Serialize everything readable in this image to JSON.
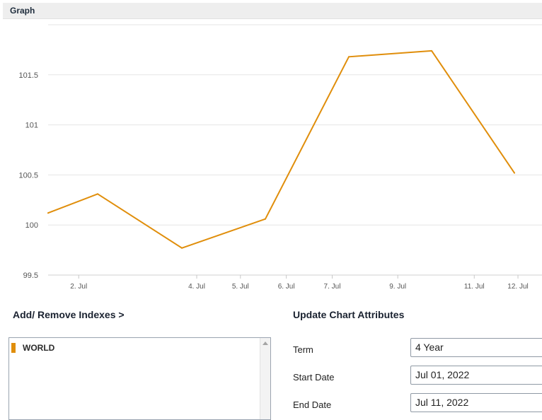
{
  "panel": {
    "title": "Graph"
  },
  "chart_data": {
    "type": "line",
    "title": "",
    "xlabel": "",
    "ylabel": "",
    "x_ticks": [
      "2. Jul",
      "4. Jul",
      "5. Jul",
      "6. Jul",
      "7. Jul",
      "9. Jul",
      "11. Jul",
      "12. Jul"
    ],
    "y_ticks": [
      "99.5",
      "100",
      "100.5",
      "101",
      "101.5"
    ],
    "ylim": [
      99.5,
      102.0
    ],
    "grid": true,
    "series": [
      {
        "name": "WORLD",
        "color": "#e08e0b",
        "points": [
          {
            "x": "Jul 1, 2022",
            "y": 100.12
          },
          {
            "x": "Jul 4, 2022",
            "y": 100.31
          },
          {
            "x": "Jul 5, 2022",
            "y": 99.77
          },
          {
            "x": "Jul 6, 2022",
            "y": 100.06
          },
          {
            "x": "Jul 7, 2022",
            "y": 101.68
          },
          {
            "x": "Jul 8, 2022",
            "y": 101.74
          },
          {
            "x": "Jul 11, 2022",
            "y": 100.52
          }
        ]
      }
    ]
  },
  "indexes": {
    "heading": "Add/ Remove Indexes >",
    "items": [
      {
        "label": "WORLD",
        "color": "#e08e0b"
      }
    ]
  },
  "attributes": {
    "heading": "Update Chart Attributes",
    "term_label": "Term",
    "term_value": "4 Year",
    "start_label": "Start Date",
    "start_value": "Jul 01, 2022",
    "end_label": "End Date",
    "end_value": "Jul 11, 2022"
  }
}
